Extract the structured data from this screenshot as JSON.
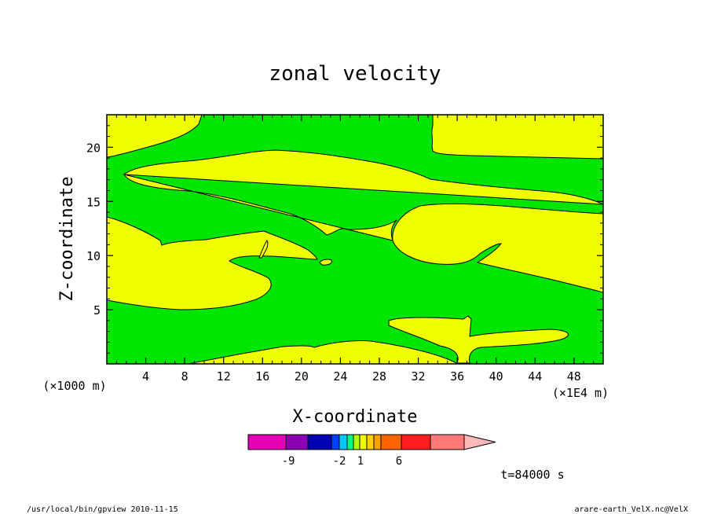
{
  "colors": {
    "zone_green": "#00e600",
    "zone_yellow": "#f0ff00",
    "colorbar": [
      "#e600b4",
      "#8c00b4",
      "#0000b4",
      "#0040ff",
      "#00c8ff",
      "#00ff80",
      "#b4ff00",
      "#f0ff00",
      "#ffd200",
      "#ffa000",
      "#ff6400",
      "#ff1e1e",
      "#ff7a78",
      "#ffb8b8"
    ]
  },
  "chart_data": {
    "type": "heatmap",
    "title": "zonal velocity",
    "xlabel": "X-coordinate",
    "ylabel": "Z-coordinate",
    "x_multiplier": "(×1E4 m)",
    "y_multiplier": "(×1000 m)",
    "x_ticks": [
      "4",
      "8",
      "12",
      "16",
      "20",
      "24",
      "28",
      "32",
      "36",
      "40",
      "44",
      "48"
    ],
    "y_ticks": [
      "5",
      "10",
      "15",
      "20"
    ],
    "x_range": [
      0,
      51
    ],
    "y_range": [
      0,
      23
    ],
    "colorbar_labels": [
      "-9",
      "-2",
      "1",
      "6"
    ],
    "time_label": "t=84000 s",
    "footer_left": "/usr/local/bin/gpview  2010-11-15",
    "footer_right": "arare-earth_VelX.nc@VelX"
  }
}
